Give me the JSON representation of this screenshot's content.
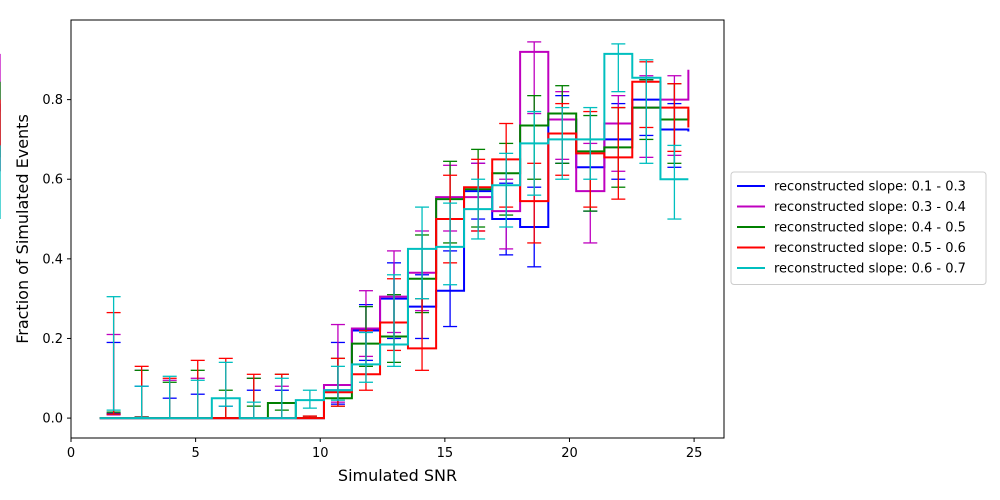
{
  "chart_data": {
    "type": "step-histogram",
    "xlabel": "Simulated SNR",
    "ylabel": "Fraction of Simulated Events",
    "xlim": [
      0,
      26.2
    ],
    "ylim": [
      -0.05,
      1.0
    ],
    "xticks": [
      0,
      5,
      10,
      15,
      20,
      25
    ],
    "yticks": [
      0.0,
      0.2,
      0.4,
      0.6,
      0.8
    ],
    "xtick_labels": [
      "0",
      "5",
      "10",
      "15",
      "20",
      "25"
    ],
    "ytick_labels": [
      "0.0",
      "0.2",
      "0.4",
      "0.6",
      "0.8"
    ],
    "legend_position": "right",
    "bin_edges": [
      1.15,
      2.27,
      3.4,
      4.52,
      5.65,
      6.77,
      7.9,
      9.02,
      10.15,
      11.27,
      12.4,
      13.52,
      14.65,
      15.77,
      16.9,
      18.02,
      19.15,
      20.27,
      21.4,
      22.52,
      23.65,
      24.77
    ],
    "series": [
      {
        "name": "reconstructed slope: 0.1 - 0.3",
        "color": "#0000ff",
        "values": [
          0.0,
          0.0,
          0.0,
          0.0,
          0.0,
          0.0,
          0.0,
          0.0,
          0.07,
          0.22,
          0.3,
          0.28,
          0.32,
          0.57,
          0.5,
          0.48,
          0.75,
          0.63,
          0.7,
          0.8,
          0.725,
          0.72
        ],
        "err_low": [
          0.012,
          0.002,
          0.0,
          0.0,
          0.0,
          0.0,
          0.0,
          0.0,
          0.035,
          0.145,
          0.2,
          0.2,
          0.23,
          0.5,
          0.41,
          0.38,
          0.64,
          0.52,
          0.6,
          0.71,
          0.63,
          0.62
        ],
        "err_high": [
          0.19,
          0.08,
          0.05,
          0.06,
          0.03,
          0.07,
          0.07,
          0.0,
          0.19,
          0.285,
          0.39,
          0.36,
          0.42,
          0.64,
          0.59,
          0.58,
          0.81,
          0.7,
          0.79,
          0.85,
          0.79,
          0.79
        ]
      },
      {
        "name": "reconstructed slope: 0.3 - 0.4",
        "color": "#bf00bf",
        "values": [
          0.0,
          0.0,
          0.0,
          0.0,
          0.0,
          0.0,
          0.0,
          0.0,
          0.083,
          0.225,
          0.305,
          0.365,
          0.555,
          0.555,
          0.52,
          0.92,
          0.75,
          0.57,
          0.74,
          0.78,
          0.8,
          0.875
        ],
        "err_low": [
          0.008,
          0.003,
          0.0,
          0.0,
          0.0,
          0.0,
          0.0,
          0.0,
          0.04,
          0.155,
          0.215,
          0.27,
          0.47,
          0.47,
          0.425,
          0.765,
          0.65,
          0.44,
          0.62,
          0.655,
          0.66,
          0.77
        ],
        "err_high": [
          0.21,
          0.12,
          0.095,
          0.1,
          0.05,
          0.1,
          0.08,
          0.005,
          0.235,
          0.32,
          0.42,
          0.47,
          0.635,
          0.64,
          0.6,
          0.945,
          0.82,
          0.69,
          0.81,
          0.86,
          0.86,
          0.915
        ]
      },
      {
        "name": "reconstructed slope: 0.4 - 0.5",
        "color": "#008000",
        "values": [
          0.0,
          0.0,
          0.0,
          0.0,
          0.0,
          0.0,
          0.038,
          0.0,
          0.05,
          0.187,
          0.205,
          0.35,
          0.55,
          0.575,
          0.615,
          0.735,
          0.765,
          0.67,
          0.68,
          0.78,
          0.75,
          0.775
        ],
        "err_low": [
          0.01,
          0.003,
          0.0,
          0.0,
          0.0,
          0.03,
          0.02,
          0.0,
          0.03,
          0.13,
          0.14,
          0.265,
          0.44,
          0.48,
          0.51,
          0.6,
          0.64,
          0.52,
          0.58,
          0.7,
          0.64,
          0.655
        ],
        "err_high": [
          0.015,
          0.12,
          0.09,
          0.12,
          0.07,
          0.1,
          0.11,
          0.005,
          0.15,
          0.28,
          0.31,
          0.46,
          0.645,
          0.675,
          0.69,
          0.81,
          0.835,
          0.76,
          0.78,
          0.85,
          0.84,
          0.845
        ]
      },
      {
        "name": "reconstructed slope: 0.5 - 0.6",
        "color": "#ff0000",
        "values": [
          0.0,
          0.0,
          0.0,
          0.0,
          0.0,
          0.0,
          0.0,
          0.0,
          0.065,
          0.11,
          0.24,
          0.175,
          0.5,
          0.58,
          0.65,
          0.545,
          0.715,
          0.665,
          0.655,
          0.845,
          0.78,
          0.73
        ],
        "err_low": [
          0.01,
          0.003,
          0.0,
          0.0,
          0.0,
          0.0,
          0.0,
          0.0,
          0.03,
          0.07,
          0.17,
          0.12,
          0.39,
          0.47,
          0.53,
          0.44,
          0.61,
          0.53,
          0.55,
          0.73,
          0.67,
          0.62
        ],
        "err_high": [
          0.265,
          0.13,
          0.1,
          0.145,
          0.15,
          0.11,
          0.11,
          0.005,
          0.15,
          0.22,
          0.35,
          0.3,
          0.61,
          0.65,
          0.74,
          0.64,
          0.79,
          0.77,
          0.78,
          0.895,
          0.84,
          0.8
        ]
      },
      {
        "name": "reconstructed slope: 0.6 - 0.7",
        "color": "#00bfbf",
        "values": [
          0.0,
          0.0,
          0.0,
          0.0,
          0.05,
          0.0,
          0.0,
          0.045,
          0.07,
          0.135,
          0.185,
          0.425,
          0.43,
          0.525,
          0.585,
          0.69,
          0.7,
          0.7,
          0.915,
          0.855,
          0.6,
          0.6
        ],
        "err_low": [
          0.02,
          0.002,
          0.0,
          0.0,
          0.03,
          0.0,
          0.0,
          0.025,
          0.045,
          0.09,
          0.13,
          0.3,
          0.335,
          0.45,
          0.48,
          0.56,
          0.6,
          0.6,
          0.82,
          0.64,
          0.5,
          0.5
        ],
        "err_high": [
          0.305,
          0.08,
          0.105,
          0.095,
          0.14,
          0.04,
          0.1,
          0.07,
          0.13,
          0.215,
          0.36,
          0.53,
          0.54,
          0.6,
          0.665,
          0.77,
          0.78,
          0.78,
          0.94,
          0.9,
          0.685,
          0.685
        ]
      }
    ]
  }
}
